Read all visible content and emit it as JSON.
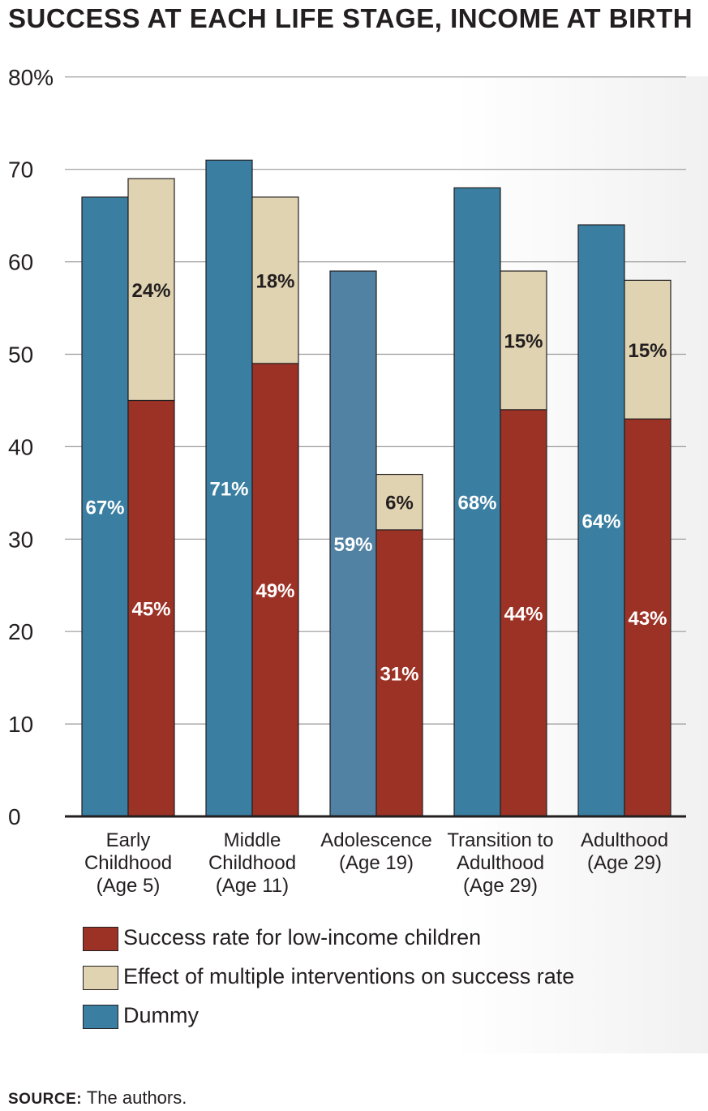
{
  "title": "SUCCESS AT EACH LIFE STAGE, INCOME AT BIRTH",
  "source": {
    "label": "SOURCE:",
    "text": "The authors."
  },
  "colors": {
    "dummy": "#3a7ea1",
    "dummy_adolescence": "#5282a3",
    "low_income": "#9c3125",
    "interventions": "#e0d3b2",
    "grid": "#9a9a9a",
    "axis": "#231f20"
  },
  "chart_data": {
    "type": "bar",
    "stacked_series_on_second_bar": true,
    "ylim": [
      0,
      80
    ],
    "y_ticks": [
      0,
      10,
      20,
      30,
      40,
      50,
      60,
      70,
      80
    ],
    "y_tick_labels": [
      "0",
      "10",
      "20",
      "30",
      "40",
      "50",
      "60",
      "70",
      "80%"
    ],
    "grid": true,
    "categories": [
      [
        "Early",
        "Childhood",
        "(Age 5)"
      ],
      [
        "Middle",
        "Childhood",
        "(Age 11)"
      ],
      [
        "Adolescence",
        "(Age 19)"
      ],
      [
        "Transition to",
        "Adulthood",
        "(Age 29)"
      ],
      [
        "Adulthood",
        "(Age 29)"
      ]
    ],
    "series": [
      {
        "name": "Dummy",
        "values": [
          67,
          71,
          59,
          68,
          64
        ],
        "labels": [
          "67%",
          "71%",
          "59%",
          "68%",
          "64%"
        ]
      },
      {
        "name": "Success rate for low-income children",
        "values": [
          45,
          49,
          31,
          44,
          43
        ],
        "labels": [
          "45%",
          "49%",
          "31%",
          "44%",
          "43%"
        ]
      },
      {
        "name": "Effect of multiple interventions on success rate",
        "values": [
          24,
          18,
          6,
          15,
          15
        ],
        "labels": [
          "24%",
          "18%",
          "6%",
          "15%",
          "15%"
        ]
      }
    ],
    "legend": [
      {
        "name": "Success rate for low-income children",
        "color": "#9c3125"
      },
      {
        "name": "Effect of multiple interventions on success rate",
        "color": "#e0d3b2"
      },
      {
        "name": "Dummy",
        "color": "#3a7ea1"
      }
    ],
    "legend_placement": "bottom"
  }
}
